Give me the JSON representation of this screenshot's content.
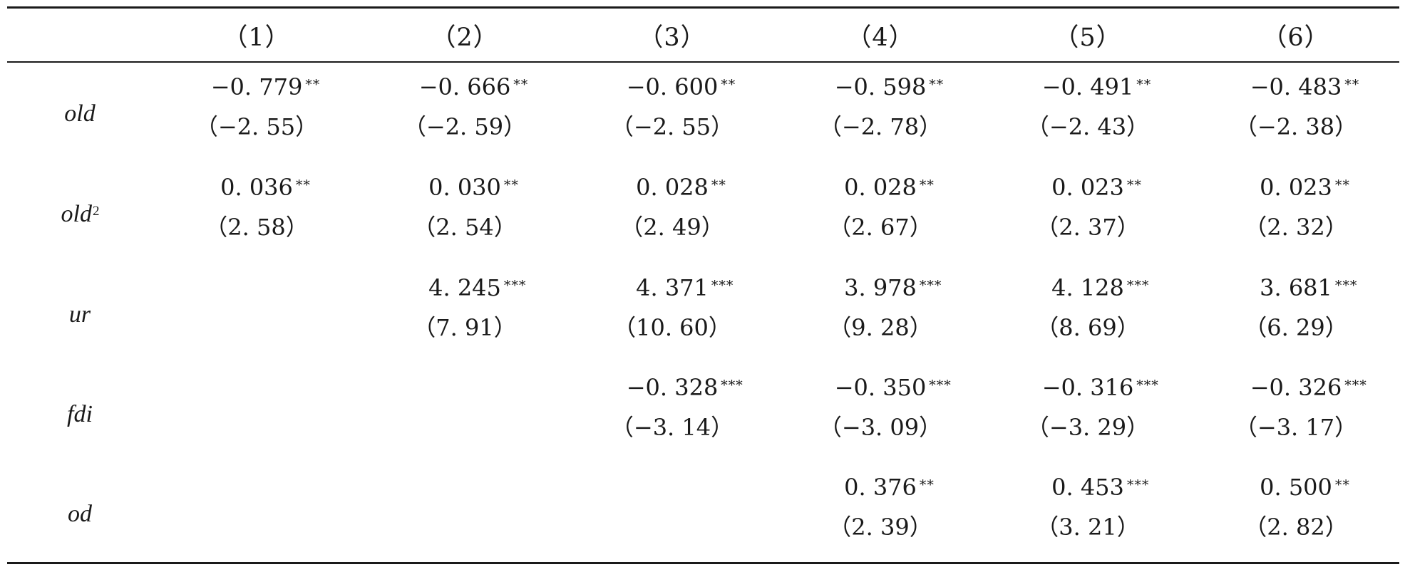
{
  "table": {
    "columns": [
      "（1）",
      "（2）",
      "（3）",
      "（4）",
      "（5）",
      "（6）"
    ],
    "rows": [
      {
        "name": "old",
        "sup": "",
        "cells": [
          {
            "coef": "−0. 779",
            "stars": "**",
            "t": "（−2. 55）"
          },
          {
            "coef": "−0. 666",
            "stars": "**",
            "t": "（−2. 59）"
          },
          {
            "coef": "−0. 600",
            "stars": "**",
            "t": "（−2. 55）"
          },
          {
            "coef": "−0. 598",
            "stars": "**",
            "t": "（−2. 78）"
          },
          {
            "coef": "−0. 491",
            "stars": "**",
            "t": "（−2. 43）"
          },
          {
            "coef": "−0. 483",
            "stars": "**",
            "t": "（−2. 38）"
          }
        ]
      },
      {
        "name": "old",
        "sup": "2",
        "cells": [
          {
            "coef": "0. 036",
            "stars": "**",
            "t": "（2. 58）"
          },
          {
            "coef": "0. 030",
            "stars": "**",
            "t": "（2. 54）"
          },
          {
            "coef": "0. 028",
            "stars": "**",
            "t": "（2. 49）"
          },
          {
            "coef": "0. 028",
            "stars": "**",
            "t": "（2. 67）"
          },
          {
            "coef": "0. 023",
            "stars": "**",
            "t": "（2. 37）"
          },
          {
            "coef": "0. 023",
            "stars": "**",
            "t": "（2. 32）"
          }
        ]
      },
      {
        "name": "ur",
        "sup": "",
        "cells": [
          {
            "coef": "",
            "stars": "",
            "t": ""
          },
          {
            "coef": "4. 245",
            "stars": "***",
            "t": "（7. 91）"
          },
          {
            "coef": "4. 371",
            "stars": "***",
            "t": "（10. 60）"
          },
          {
            "coef": "3. 978",
            "stars": "***",
            "t": "（9. 28）"
          },
          {
            "coef": "4. 128",
            "stars": "***",
            "t": "（8. 69）"
          },
          {
            "coef": "3. 681",
            "stars": "***",
            "t": "（6. 29）"
          }
        ]
      },
      {
        "name": "fdi",
        "sup": "",
        "cells": [
          {
            "coef": "",
            "stars": "",
            "t": ""
          },
          {
            "coef": "",
            "stars": "",
            "t": ""
          },
          {
            "coef": "−0. 328",
            "stars": "***",
            "t": "（−3. 14）"
          },
          {
            "coef": "−0. 350",
            "stars": "***",
            "t": "（−3. 09）"
          },
          {
            "coef": "−0. 316",
            "stars": "***",
            "t": "（−3. 29）"
          },
          {
            "coef": "−0. 326",
            "stars": "***",
            "t": "（−3. 17）"
          }
        ]
      },
      {
        "name": "od",
        "sup": "",
        "cells": [
          {
            "coef": "",
            "stars": "",
            "t": ""
          },
          {
            "coef": "",
            "stars": "",
            "t": ""
          },
          {
            "coef": "",
            "stars": "",
            "t": ""
          },
          {
            "coef": "0. 376",
            "stars": "**",
            "t": "（2. 39）"
          },
          {
            "coef": "0. 453",
            "stars": "***",
            "t": "（3. 21）"
          },
          {
            "coef": "0. 500",
            "stars": "**",
            "t": "（2. 82）"
          }
        ]
      }
    ]
  }
}
